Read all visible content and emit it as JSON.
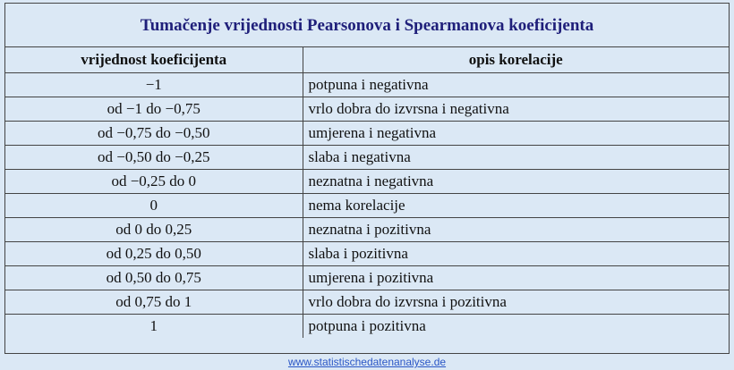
{
  "title": "Tumačenje vrijednosti Pearsonova i Spearmanova koeficijenta",
  "table": {
    "headers": [
      "vrijednost koeficijenta",
      "opis korelacije"
    ],
    "rows": [
      [
        "−1",
        "potpuna i negativna"
      ],
      [
        "od −1 do −0,75",
        "vrlo dobra do izvrsna i negativna"
      ],
      [
        "od −0,75 do −0,50",
        "umjerena i negativna"
      ],
      [
        "od −0,50 do −0,25",
        "slaba i negativna"
      ],
      [
        "od −0,25 do 0",
        "neznatna i negativna"
      ],
      [
        "0",
        "nema korelacije"
      ],
      [
        "od 0 do 0,25",
        "neznatna i pozitivna"
      ],
      [
        "od 0,25 do 0,50",
        "slaba i pozitivna"
      ],
      [
        "od 0,50 do 0,75",
        "umjerena i pozitivna"
      ],
      [
        "od 0,75 do 1",
        "vrlo dobra do izvrsna i pozitivna"
      ],
      [
        "1",
        "potpuna i pozitivna"
      ]
    ]
  },
  "source_link": "www.statistischedatenanalyse.de",
  "colors": {
    "background": "#dbe8f5",
    "title_text": "#1f1f7a",
    "border": "#444444",
    "link": "#2a56c6"
  }
}
